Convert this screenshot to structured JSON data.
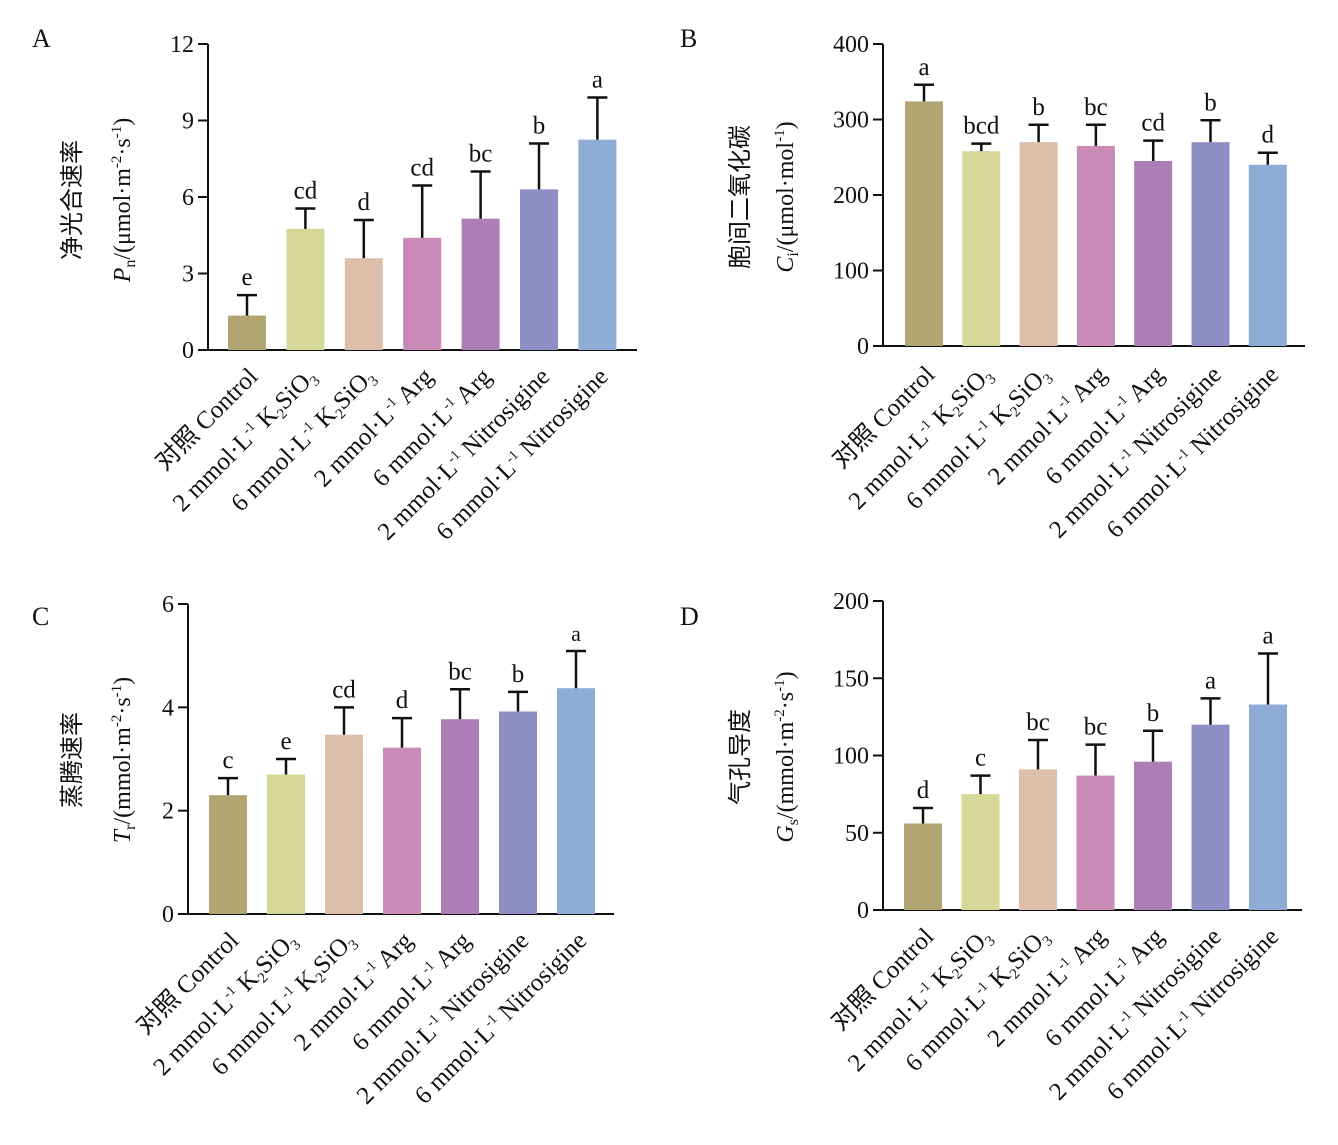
{
  "chart_data": [
    {
      "type": "bar",
      "panel": "A",
      "ylabel_cn": "净光合速率",
      "ylabel_sym": "P",
      "ylabel_sub": "n",
      "ylabel_unit": "/(μmol·m",
      "ylabel_unit_sup1": "-2",
      "ylabel_unit_mid": "·s",
      "ylabel_unit_sup2": "-1",
      "ylabel_unit_end": ")",
      "ylim": [
        0,
        12
      ],
      "yticks": [
        0,
        3,
        6,
        9,
        12
      ],
      "values": [
        1.35,
        4.75,
        3.6,
        4.4,
        5.15,
        6.3,
        8.25
      ],
      "errors": [
        0.8,
        0.8,
        1.5,
        2.05,
        1.85,
        1.8,
        1.65
      ],
      "significance": [
        "e",
        "cd",
        "d",
        "cd",
        "bc",
        "b",
        "a"
      ]
    },
    {
      "type": "bar",
      "panel": "B",
      "ylabel_cn": "胞间二氧化碳",
      "ylabel_sym": "C",
      "ylabel_sub": "i",
      "ylabel_unit": "/(μmol·mol",
      "ylabel_unit_sup1": "-1",
      "ylabel_unit_mid": "",
      "ylabel_unit_sup2": "",
      "ylabel_unit_end": ")",
      "ylim": [
        0,
        400
      ],
      "yticks": [
        0,
        100,
        200,
        300,
        400
      ],
      "values": [
        324,
        258,
        270,
        265,
        245,
        270,
        240
      ],
      "errors": [
        22,
        10,
        23,
        28,
        27,
        29,
        16
      ],
      "significance": [
        "a",
        "bcd",
        "b",
        "bc",
        "cd",
        "b",
        "d"
      ]
    },
    {
      "type": "bar",
      "panel": "C",
      "ylabel_cn": "蒸腾速率",
      "ylabel_sym": "T",
      "ylabel_sub": "r",
      "ylabel_unit": "/(mmol·m",
      "ylabel_unit_sup1": "-2",
      "ylabel_unit_mid": "·s",
      "ylabel_unit_sup2": "-1",
      "ylabel_unit_end": ")",
      "ylim": [
        0,
        6
      ],
      "yticks": [
        0,
        2,
        4,
        6
      ],
      "values": [
        2.3,
        2.7,
        3.47,
        3.22,
        3.77,
        3.92,
        4.37
      ],
      "errors": [
        0.33,
        0.3,
        0.53,
        0.57,
        0.58,
        0.38,
        0.72
      ],
      "significance": [
        "c",
        "e",
        "cd",
        "d",
        "bc",
        "b",
        "a"
      ]
    },
    {
      "type": "bar",
      "panel": "D",
      "ylabel_cn": "气孔导度",
      "ylabel_sym": "G",
      "ylabel_sub": "s",
      "ylabel_unit": "/(mmol·m",
      "ylabel_unit_sup1": "-2",
      "ylabel_unit_mid": "·s",
      "ylabel_unit_sup2": "-1",
      "ylabel_unit_end": ")",
      "ylim": [
        0,
        200
      ],
      "yticks": [
        0,
        50,
        100,
        150,
        200
      ],
      "values": [
        56,
        75,
        91,
        87,
        96,
        120,
        133
      ],
      "errors": [
        10,
        12,
        19,
        20,
        20,
        17,
        33
      ],
      "significance": [
        "d",
        "c",
        "bc",
        "bc",
        "b",
        "a",
        "a"
      ]
    }
  ],
  "categories": [
    {
      "text": "对照 Control",
      "sup": "",
      "after": "",
      "sub": "",
      "tail": ""
    },
    {
      "text": "2 mmol·L",
      "sup": "-1",
      "after": " K",
      "sub": "2",
      "tail": "SiO",
      "sub2": "3"
    },
    {
      "text": "6 mmol·L",
      "sup": "-1",
      "after": " K",
      "sub": "2",
      "tail": "SiO",
      "sub2": "3"
    },
    {
      "text": "2 mmol·L",
      "sup": "-1",
      "after": " Arg",
      "sub": "",
      "tail": ""
    },
    {
      "text": "6 mmol·L",
      "sup": "-1",
      "after": " Arg",
      "sub": "",
      "tail": ""
    },
    {
      "text": "2 mmol·L",
      "sup": "-1",
      "after": " Nitrosigine",
      "sub": "",
      "tail": ""
    },
    {
      "text": "6 mmol·L",
      "sup": "-1",
      "after": " Nitrosigine",
      "sub": "",
      "tail": ""
    }
  ],
  "colors": [
    "#b1a672",
    "#d6d89a",
    "#ddbeaa",
    "#c98ab8",
    "#ad7db7",
    "#8f8fc6",
    "#8eacd6"
  ]
}
